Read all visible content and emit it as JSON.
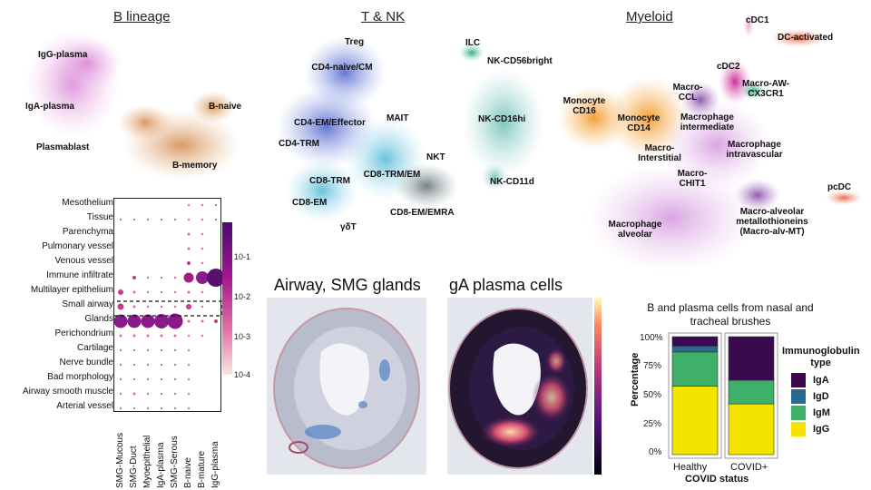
{
  "sections": {
    "b_lineage": "B lineage",
    "t_nk": "T & NK",
    "myeloid": "Myeloid"
  },
  "b_clusters": [
    "IgG-plasma",
    "IgA-plasma",
    "Plasmablast",
    "B-naive",
    "B-memory"
  ],
  "t_clusters": [
    "Treg",
    "CD4-naive/CM",
    "MAIT",
    "CD4-EM/Effector",
    "CD4-TRM",
    "NKT",
    "CD8-TRM",
    "CD8-TRM/EM",
    "CD8-EM",
    "CD8-EM/EMRA",
    "γδT",
    "ILC",
    "NK-CD56bright",
    "NK-CD16hi",
    "NK-CD11d"
  ],
  "myeloid_clusters": [
    "cDC1",
    "DC-activated",
    "cDC2",
    "Macro-CCL",
    "Macro-AW-CX3CR1",
    "Monocyte CD16",
    "Monocyte CD14",
    "Macrophage intermediate",
    "Macro-Interstitial",
    "Macrophage intravascular",
    "Macro-CHIT1",
    "pcDC",
    "Macrophage alveolar",
    "Macro-alveolar metallothioneins (Macro-alv-MT)"
  ],
  "dotplot": {
    "rows": [
      "Mesothelium",
      "Tissue",
      "Parenchyma",
      "Pulmonary vessel",
      "Venous vessel",
      "Immune infiltrate",
      "Multilayer epithelium",
      "Small airway",
      "Glands",
      "Perichondrium",
      "Cartilage",
      "Nerve bundle",
      "Bad morphology",
      "Airway smooth muscle",
      "Arterial vessel"
    ],
    "columns": [
      "SMG-Mucous",
      "SMG-Duct",
      "Myoepithelial",
      "IgA-plasma",
      "SMG-Serous",
      "B-naive",
      "B-mature",
      "IgG-plasma"
    ],
    "highlight_row": "Glands",
    "colorbar_ticks": [
      "10-1",
      "10-2",
      "10-3",
      "10-4"
    ],
    "values": [
      [
        0,
        0,
        0,
        0,
        0,
        0.05,
        0.05,
        0.05
      ],
      [
        0.08,
        0.08,
        0.08,
        0.08,
        0.08,
        0.1,
        0.1,
        0.08
      ],
      [
        0,
        0,
        0,
        0,
        0,
        0.15,
        0.05,
        0
      ],
      [
        0,
        0,
        0,
        0,
        0,
        0.15,
        0.05,
        0
      ],
      [
        0,
        0,
        0,
        0,
        0,
        0.2,
        0.05,
        0
      ],
      [
        0,
        0.2,
        0.1,
        0.12,
        0.12,
        0.55,
        0.7,
        1.0
      ],
      [
        0.3,
        0.15,
        0.05,
        0.05,
        0.05,
        0.15,
        0.05,
        0
      ],
      [
        0.35,
        0.15,
        0.05,
        0.05,
        0.05,
        0.3,
        0.1,
        0
      ],
      [
        0.75,
        0.75,
        0.75,
        0.8,
        0.85,
        0.15,
        0.15,
        0.2
      ],
      [
        0.15,
        0.15,
        0.15,
        0.15,
        0.15,
        0.08,
        0.08,
        0
      ],
      [
        0.1,
        0.08,
        0.08,
        0.08,
        0.08,
        0.05,
        0,
        0
      ],
      [
        0.05,
        0.05,
        0.05,
        0.05,
        0.05,
        0.05,
        0,
        0
      ],
      [
        0.05,
        0.05,
        0.05,
        0.05,
        0.05,
        0.05,
        0,
        0
      ],
      [
        0.1,
        0.15,
        0.08,
        0.08,
        0.08,
        0.05,
        0,
        0
      ],
      [
        0.05,
        0.05,
        0.05,
        0.05,
        0.05,
        0.05,
        0,
        0
      ]
    ]
  },
  "tissue_panels": {
    "left_title": "Airway, SMG glands",
    "right_title": "gA plasma cells"
  },
  "chart_data": {
    "type": "bar",
    "stacked": true,
    "title": "B and plasma cells from nasal and tracheal brushes",
    "xlabel": "COVID status",
    "ylabel": "Percentage",
    "categories": [
      "Healthy",
      "COVID+"
    ],
    "yticks": [
      "100%",
      "75%",
      "50%",
      "25%",
      "0%"
    ],
    "ylim": [
      0,
      100
    ],
    "legend_title": "Immunoglobulin type",
    "series": [
      {
        "name": "IgG",
        "values": [
          58,
          43
        ],
        "color": "#f5e400"
      },
      {
        "name": "IgM",
        "values": [
          29,
          20
        ],
        "color": "#3fb06a"
      },
      {
        "name": "IgD",
        "values": [
          5,
          0
        ],
        "color": "#2b6a8e"
      },
      {
        "name": "IgA",
        "values": [
          8,
          37
        ],
        "color": "#3b0a4e"
      }
    ],
    "legend_order": [
      "IgA",
      "IgD",
      "IgM",
      "IgG"
    ]
  }
}
